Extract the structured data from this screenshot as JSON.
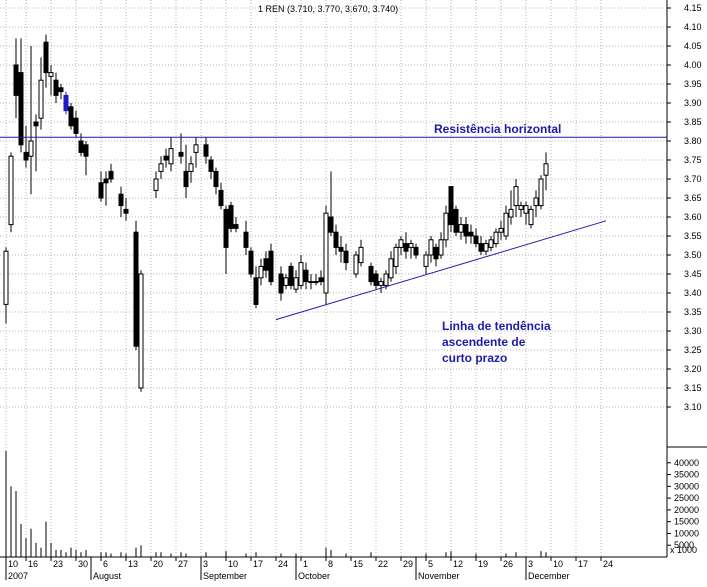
{
  "chart_data": {
    "type": "candlestick",
    "title": "1 REN (3.710, 3.770, 3.670, 3.740)",
    "price_axis": {
      "ylim": [
        3.05,
        4.15
      ],
      "ticks": [
        "3.10",
        "3.15",
        "3.20",
        "3.25",
        "3.30",
        "3.35",
        "3.40",
        "3.45",
        "3.50",
        "3.55",
        "3.60",
        "3.65",
        "3.70",
        "3.75",
        "3.80",
        "3.85",
        "3.90",
        "3.95",
        "4.00",
        "4.05",
        "4.10",
        "4.15"
      ]
    },
    "volume_axis": {
      "ylim": [
        0,
        45000
      ],
      "ticks": [
        "40000",
        "35000",
        "30000",
        "25000",
        "20000",
        "15000",
        "10000",
        "5000"
      ],
      "unit": "x 1000"
    },
    "x_axis": {
      "date_ticks": [
        "10",
        "16",
        "23",
        "30",
        "6",
        "13",
        "20",
        "27",
        "3",
        "10",
        "17",
        "24",
        "1",
        "8",
        "15",
        "22",
        "29",
        "5",
        "12",
        "19",
        "26",
        "3",
        "10",
        "17",
        "24"
      ],
      "date_tick_index": [
        0,
        4,
        9,
        14,
        19,
        24,
        29,
        34,
        39,
        44,
        49,
        54,
        59,
        64,
        69,
        74,
        79,
        84,
        89,
        94,
        99,
        104,
        109,
        114,
        119
      ],
      "months": [
        {
          "label": "2007",
          "index": 0
        },
        {
          "label": "August",
          "index": 17
        },
        {
          "label": "September",
          "index": 39
        },
        {
          "label": "October",
          "index": 58
        },
        {
          "label": "November",
          "index": 82
        },
        {
          "label": "December",
          "index": 104
        }
      ],
      "n_slots": 122
    },
    "candles": [
      {
        "i": 0,
        "o": 3.37,
        "h": 3.52,
        "l": 3.32,
        "c": 3.51
      },
      {
        "i": 1,
        "o": 3.58,
        "h": 3.77,
        "l": 3.56,
        "c": 3.76
      },
      {
        "i": 2,
        "o": 4.0,
        "h": 4.07,
        "l": 3.86,
        "c": 3.92
      },
      {
        "i": 3,
        "o": 3.98,
        "h": 4.07,
        "l": 3.77,
        "c": 3.79
      },
      {
        "i": 4,
        "o": 3.77,
        "h": 3.84,
        "l": 3.73,
        "c": 3.75
      },
      {
        "i": 5,
        "o": 3.76,
        "h": 4.05,
        "l": 3.66,
        "c": 3.8
      },
      {
        "i": 6,
        "o": 3.85,
        "h": 3.87,
        "l": 3.72,
        "c": 3.84
      },
      {
        "i": 7,
        "o": 3.86,
        "h": 4.02,
        "l": 3.83,
        "c": 3.96
      },
      {
        "i": 8,
        "o": 4.06,
        "h": 4.08,
        "l": 3.94,
        "c": 3.98
      },
      {
        "i": 9,
        "o": 3.97,
        "h": 4.0,
        "l": 3.92,
        "c": 3.98
      },
      {
        "i": 10,
        "o": 3.96,
        "h": 3.98,
        "l": 3.9,
        "c": 3.92
      },
      {
        "i": 11,
        "o": 3.94,
        "h": 3.95,
        "l": 3.91,
        "c": 3.93
      },
      {
        "i": 12,
        "o": 3.92,
        "h": 3.93,
        "l": 3.87,
        "c": 3.88
      },
      {
        "i": 13,
        "o": 3.89,
        "h": 3.9,
        "l": 3.83,
        "c": 3.84
      },
      {
        "i": 14,
        "o": 3.86,
        "h": 3.88,
        "l": 3.81,
        "c": 3.82
      },
      {
        "i": 15,
        "o": 3.8,
        "h": 3.82,
        "l": 3.76,
        "c": 3.77
      },
      {
        "i": 16,
        "o": 3.79,
        "h": 3.8,
        "l": 3.71,
        "c": 3.76
      },
      {
        "i": 19,
        "o": 3.69,
        "h": 3.72,
        "l": 3.64,
        "c": 3.65
      },
      {
        "i": 20,
        "o": 3.7,
        "h": 3.72,
        "l": 3.63,
        "c": 3.69
      },
      {
        "i": 21,
        "o": 3.72,
        "h": 3.74,
        "l": 3.69,
        "c": 3.7
      },
      {
        "i": 23,
        "o": 3.66,
        "h": 3.68,
        "l": 3.6,
        "c": 3.63
      },
      {
        "i": 24,
        "o": 3.62,
        "h": 3.65,
        "l": 3.59,
        "c": 3.61
      },
      {
        "i": 26,
        "o": 3.56,
        "h": 3.59,
        "l": 3.25,
        "c": 3.26
      },
      {
        "i": 27,
        "o": 3.15,
        "h": 3.46,
        "l": 3.14,
        "c": 3.45
      },
      {
        "i": 30,
        "o": 3.67,
        "h": 3.72,
        "l": 3.65,
        "c": 3.7
      },
      {
        "i": 31,
        "o": 3.72,
        "h": 3.76,
        "l": 3.7,
        "c": 3.74
      },
      {
        "i": 32,
        "o": 3.76,
        "h": 3.78,
        "l": 3.73,
        "c": 3.75
      },
      {
        "i": 33,
        "o": 3.74,
        "h": 3.81,
        "l": 3.72,
        "c": 3.78
      },
      {
        "i": 35,
        "o": 3.77,
        "h": 3.82,
        "l": 3.74,
        "c": 3.76
      },
      {
        "i": 36,
        "o": 3.72,
        "h": 3.79,
        "l": 3.65,
        "c": 3.68
      },
      {
        "i": 37,
        "o": 3.72,
        "h": 3.76,
        "l": 3.69,
        "c": 3.74
      },
      {
        "i": 38,
        "o": 3.77,
        "h": 3.81,
        "l": 3.73,
        "c": 3.79
      },
      {
        "i": 40,
        "o": 3.79,
        "h": 3.81,
        "l": 3.74,
        "c": 3.76
      },
      {
        "i": 41,
        "o": 3.75,
        "h": 3.76,
        "l": 3.7,
        "c": 3.72
      },
      {
        "i": 42,
        "o": 3.72,
        "h": 3.73,
        "l": 3.66,
        "c": 3.68
      },
      {
        "i": 43,
        "o": 3.67,
        "h": 3.69,
        "l": 3.62,
        "c": 3.63
      },
      {
        "i": 44,
        "o": 3.62,
        "h": 3.63,
        "l": 3.45,
        "c": 3.52
      },
      {
        "i": 45,
        "o": 3.63,
        "h": 3.64,
        "l": 3.56,
        "c": 3.57
      },
      {
        "i": 46,
        "o": 3.58,
        "h": 3.6,
        "l": 3.56,
        "c": 3.57
      },
      {
        "i": 48,
        "o": 3.56,
        "h": 3.59,
        "l": 3.5,
        "c": 3.52
      },
      {
        "i": 49,
        "o": 3.51,
        "h": 3.52,
        "l": 3.44,
        "c": 3.45
      },
      {
        "i": 50,
        "o": 3.44,
        "h": 3.47,
        "l": 3.36,
        "c": 3.37
      },
      {
        "i": 51,
        "o": 3.44,
        "h": 3.49,
        "l": 3.42,
        "c": 3.47
      },
      {
        "i": 52,
        "o": 3.49,
        "h": 3.51,
        "l": 3.44,
        "c": 3.46
      },
      {
        "i": 53,
        "o": 3.51,
        "h": 3.53,
        "l": 3.42,
        "c": 3.43
      },
      {
        "i": 55,
        "o": 3.45,
        "h": 3.47,
        "l": 3.38,
        "c": 3.4
      },
      {
        "i": 56,
        "o": 3.42,
        "h": 3.45,
        "l": 3.41,
        "c": 3.44
      },
      {
        "i": 57,
        "o": 3.47,
        "h": 3.48,
        "l": 3.41,
        "c": 3.42
      },
      {
        "i": 58,
        "o": 3.41,
        "h": 3.46,
        "l": 3.4,
        "c": 3.44
      },
      {
        "i": 59,
        "o": 3.42,
        "h": 3.5,
        "l": 3.41,
        "c": 3.48
      },
      {
        "i": 60,
        "o": 3.46,
        "h": 3.48,
        "l": 3.41,
        "c": 3.43
      },
      {
        "i": 61,
        "o": 3.43,
        "h": 3.45,
        "l": 3.41,
        "c": 3.43
      },
      {
        "i": 62,
        "o": 3.43,
        "h": 3.45,
        "l": 3.42,
        "c": 3.43
      },
      {
        "i": 63,
        "o": 3.44,
        "h": 3.46,
        "l": 3.42,
        "c": 3.43
      },
      {
        "i": 64,
        "o": 3.4,
        "h": 3.63,
        "l": 3.37,
        "c": 3.61
      },
      {
        "i": 65,
        "o": 3.6,
        "h": 3.72,
        "l": 3.55,
        "c": 3.56
      },
      {
        "i": 66,
        "o": 3.56,
        "h": 3.58,
        "l": 3.5,
        "c": 3.52
      },
      {
        "i": 67,
        "o": 3.52,
        "h": 3.55,
        "l": 3.48,
        "c": 3.51
      },
      {
        "i": 68,
        "o": 3.51,
        "h": 3.53,
        "l": 3.46,
        "c": 3.48
      },
      {
        "i": 70,
        "o": 3.45,
        "h": 3.51,
        "l": 3.44,
        "c": 3.5
      },
      {
        "i": 71,
        "o": 3.48,
        "h": 3.54,
        "l": 3.47,
        "c": 3.52
      },
      {
        "i": 73,
        "o": 3.47,
        "h": 3.48,
        "l": 3.42,
        "c": 3.43
      },
      {
        "i": 74,
        "o": 3.45,
        "h": 3.46,
        "l": 3.41,
        "c": 3.42
      },
      {
        "i": 75,
        "o": 3.42,
        "h": 3.44,
        "l": 3.4,
        "c": 3.43
      },
      {
        "i": 76,
        "o": 3.42,
        "h": 3.46,
        "l": 3.41,
        "c": 3.45
      },
      {
        "i": 77,
        "o": 3.44,
        "h": 3.51,
        "l": 3.43,
        "c": 3.49
      },
      {
        "i": 78,
        "o": 3.47,
        "h": 3.53,
        "l": 3.45,
        "c": 3.52
      },
      {
        "i": 79,
        "o": 3.52,
        "h": 3.55,
        "l": 3.5,
        "c": 3.54
      },
      {
        "i": 80,
        "o": 3.53,
        "h": 3.56,
        "l": 3.49,
        "c": 3.51
      },
      {
        "i": 81,
        "o": 3.52,
        "h": 3.54,
        "l": 3.49,
        "c": 3.53
      },
      {
        "i": 82,
        "o": 3.52,
        "h": 3.53,
        "l": 3.49,
        "c": 3.5
      },
      {
        "i": 84,
        "o": 3.47,
        "h": 3.51,
        "l": 3.45,
        "c": 3.5
      },
      {
        "i": 85,
        "o": 3.5,
        "h": 3.55,
        "l": 3.48,
        "c": 3.54
      },
      {
        "i": 86,
        "o": 3.52,
        "h": 3.53,
        "l": 3.47,
        "c": 3.49
      },
      {
        "i": 87,
        "o": 3.5,
        "h": 3.56,
        "l": 3.49,
        "c": 3.54
      },
      {
        "i": 88,
        "o": 3.54,
        "h": 3.63,
        "l": 3.52,
        "c": 3.61
      },
      {
        "i": 89,
        "o": 3.68,
        "h": 3.68,
        "l": 3.56,
        "c": 3.58
      },
      {
        "i": 90,
        "o": 3.62,
        "h": 3.63,
        "l": 3.55,
        "c": 3.56
      },
      {
        "i": 91,
        "o": 3.56,
        "h": 3.6,
        "l": 3.54,
        "c": 3.58
      },
      {
        "i": 92,
        "o": 3.58,
        "h": 3.6,
        "l": 3.53,
        "c": 3.55
      },
      {
        "i": 93,
        "o": 3.56,
        "h": 3.58,
        "l": 3.53,
        "c": 3.55
      },
      {
        "i": 94,
        "o": 3.55,
        "h": 3.57,
        "l": 3.52,
        "c": 3.53
      },
      {
        "i": 95,
        "o": 3.53,
        "h": 3.55,
        "l": 3.5,
        "c": 3.51
      },
      {
        "i": 96,
        "o": 3.51,
        "h": 3.54,
        "l": 3.5,
        "c": 3.53
      },
      {
        "i": 97,
        "o": 3.52,
        "h": 3.55,
        "l": 3.51,
        "c": 3.54
      },
      {
        "i": 98,
        "o": 3.53,
        "h": 3.57,
        "l": 3.52,
        "c": 3.56
      },
      {
        "i": 99,
        "o": 3.56,
        "h": 3.59,
        "l": 3.54,
        "c": 3.57
      },
      {
        "i": 100,
        "o": 3.55,
        "h": 3.63,
        "l": 3.54,
        "c": 3.61
      },
      {
        "i": 101,
        "o": 3.6,
        "h": 3.67,
        "l": 3.58,
        "c": 3.62
      },
      {
        "i": 102,
        "o": 3.63,
        "h": 3.7,
        "l": 3.6,
        "c": 3.68
      },
      {
        "i": 103,
        "o": 3.62,
        "h": 3.64,
        "l": 3.6,
        "c": 3.63
      },
      {
        "i": 104,
        "o": 3.61,
        "h": 3.64,
        "l": 3.58,
        "c": 3.63
      },
      {
        "i": 105,
        "o": 3.58,
        "h": 3.63,
        "l": 3.57,
        "c": 3.62
      },
      {
        "i": 106,
        "o": 3.63,
        "h": 3.67,
        "l": 3.6,
        "c": 3.65
      },
      {
        "i": 107,
        "o": 3.63,
        "h": 3.71,
        "l": 3.62,
        "c": 3.7
      },
      {
        "i": 108,
        "o": 3.71,
        "h": 3.77,
        "l": 3.67,
        "c": 3.74
      }
    ],
    "highlighted_candles": [
      12,
      47
    ],
    "volume": [
      {
        "i": 0,
        "v": 45000
      },
      {
        "i": 1,
        "v": 30000
      },
      {
        "i": 2,
        "v": 28000
      },
      {
        "i": 3,
        "v": 14000
      },
      {
        "i": 4,
        "v": 8000
      },
      {
        "i": 5,
        "v": 12000
      },
      {
        "i": 6,
        "v": 6000
      },
      {
        "i": 7,
        "v": 4000
      },
      {
        "i": 8,
        "v": 15000
      },
      {
        "i": 9,
        "v": 6000
      },
      {
        "i": 10,
        "v": 3000
      },
      {
        "i": 11,
        "v": 3000
      },
      {
        "i": 12,
        "v": 2000
      },
      {
        "i": 13,
        "v": 4000
      },
      {
        "i": 14,
        "v": 3000
      },
      {
        "i": 15,
        "v": 2000
      },
      {
        "i": 16,
        "v": 3000
      },
      {
        "i": 19,
        "v": 2000
      },
      {
        "i": 20,
        "v": 2000
      },
      {
        "i": 21,
        "v": 1500
      },
      {
        "i": 23,
        "v": 2000
      },
      {
        "i": 24,
        "v": 1500
      },
      {
        "i": 26,
        "v": 4000
      },
      {
        "i": 27,
        "v": 5000
      },
      {
        "i": 30,
        "v": 2000
      },
      {
        "i": 31,
        "v": 2000
      },
      {
        "i": 33,
        "v": 1500
      },
      {
        "i": 35,
        "v": 2000
      },
      {
        "i": 36,
        "v": 1500
      },
      {
        "i": 40,
        "v": 2000
      },
      {
        "i": 44,
        "v": 2500
      },
      {
        "i": 48,
        "v": 1500
      },
      {
        "i": 50,
        "v": 2000
      },
      {
        "i": 55,
        "v": 1500
      },
      {
        "i": 58,
        "v": 1500
      },
      {
        "i": 64,
        "v": 4000
      },
      {
        "i": 65,
        "v": 3000
      },
      {
        "i": 68,
        "v": 1500
      },
      {
        "i": 73,
        "v": 2000
      },
      {
        "i": 84,
        "v": 1500
      },
      {
        "i": 88,
        "v": 2000
      },
      {
        "i": 89,
        "v": 2500
      },
      {
        "i": 94,
        "v": 1500
      },
      {
        "i": 100,
        "v": 1500
      },
      {
        "i": 102,
        "v": 2000
      },
      {
        "i": 107,
        "v": 2500
      },
      {
        "i": 108,
        "v": 2000
      }
    ],
    "resistance": {
      "price": 3.81,
      "label": "Resistência horizontal"
    },
    "trendline": {
      "start": {
        "i": 54,
        "price": 3.33
      },
      "end": {
        "i": 120,
        "price": 3.59
      },
      "label": [
        "Linha de tendência",
        "ascendente de",
        "curto prazo"
      ]
    },
    "grid": true,
    "colors": {
      "candle": "#000000",
      "highlight": "#1c1cc8",
      "annotation": "#1c1ca8",
      "grid": "#b4b4b4",
      "background": "#ffffff"
    }
  }
}
